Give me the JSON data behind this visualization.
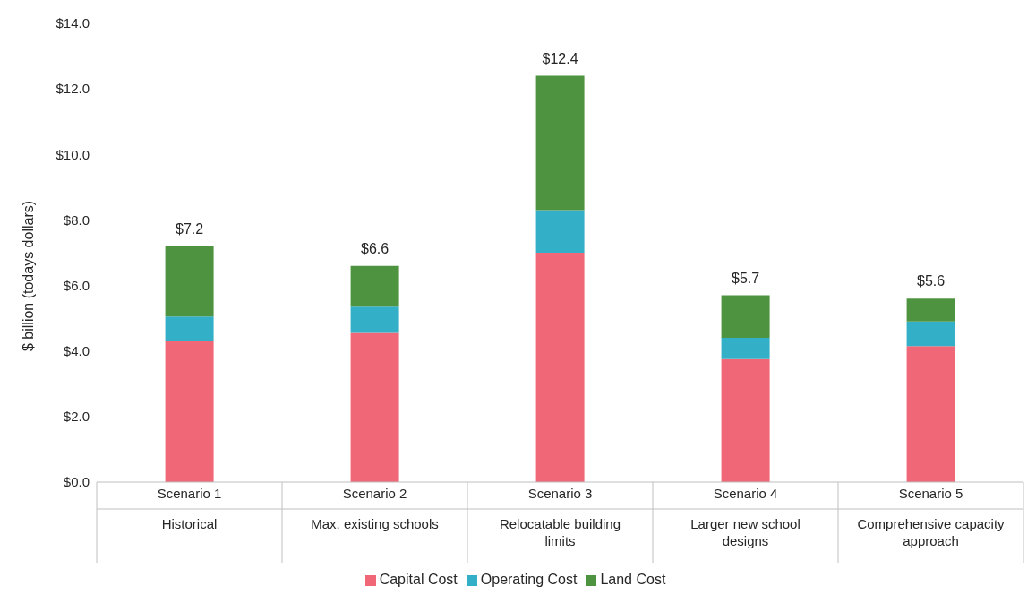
{
  "chart_data": {
    "type": "bar",
    "stacked": true,
    "ylabel": "$ billion (todays dollars)",
    "categories": [
      "Scenario 1\nHistorical",
      "Scenario 2\nMax. existing schools",
      "Scenario 3\nRelocatable building limits",
      "Scenario 4\nLarger new school designs",
      "Scenario 5\nComprehensive capacity approach"
    ],
    "series": [
      {
        "name": "Capital Cost",
        "color": "#f06878",
        "values": [
          4.3,
          4.55,
          7.0,
          3.75,
          4.15
        ]
      },
      {
        "name": "Operating Cost",
        "color": "#33b0c8",
        "values": [
          0.75,
          0.8,
          1.3,
          0.65,
          0.75
        ]
      },
      {
        "name": "Land Cost",
        "color": "#4e9440",
        "values": [
          2.15,
          1.25,
          4.1,
          1.3,
          0.7
        ]
      }
    ],
    "totals": [
      "$7.2",
      "$6.6",
      "$12.4",
      "$5.7",
      "$5.6"
    ],
    "ylim": [
      0,
      14
    ],
    "yticks": [
      {
        "value": 0,
        "label": "$0.0"
      },
      {
        "value": 2,
        "label": "$2.0"
      },
      {
        "value": 4,
        "label": "$4.0"
      },
      {
        "value": 6,
        "label": "$6.0"
      },
      {
        "value": 8,
        "label": "$8.0"
      },
      {
        "value": 10,
        "label": "$10.0"
      },
      {
        "value": 12,
        "label": "$12.0"
      },
      {
        "value": 14,
        "label": "$14.0"
      }
    ],
    "grid": false,
    "legend": "bottom"
  }
}
